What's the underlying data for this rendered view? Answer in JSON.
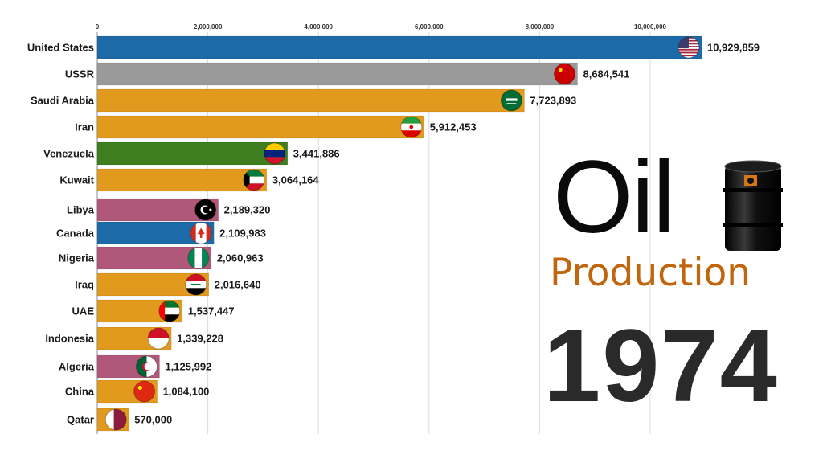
{
  "overlay": {
    "title": "Oil",
    "subtitle": "Production",
    "year": "1974"
  },
  "colors": {
    "blue": "#1d6aa8",
    "gray": "#9a9a9a",
    "orange": "#e29a1e",
    "green": "#3f7e1e",
    "mauve": "#b0587a",
    "subtitle": "#c0660e"
  },
  "chart_data": {
    "type": "bar",
    "orientation": "horizontal",
    "xlim": [
      0,
      11000000
    ],
    "ticks": [
      0,
      2000000,
      4000000,
      6000000,
      8000000,
      10000000
    ],
    "tick_labels": [
      "0",
      "2,000,000",
      "4,000,000",
      "6,000,000",
      "8,000,000",
      "10,000,000"
    ],
    "grid": true,
    "categories": [
      "United States",
      "USSR",
      "Saudi Arabia",
      "Iran",
      "Venezuela",
      "Kuwait",
      "Libya",
      "Canada",
      "Nigeria",
      "Iraq",
      "UAE",
      "Indonesia",
      "Algeria",
      "China",
      "Qatar"
    ],
    "values": [
      10929859,
      8684541,
      7723893,
      5912453,
      3441886,
      3064164,
      2189320,
      2109983,
      2060963,
      2016640,
      1537447,
      1339228,
      1125992,
      1084100,
      570000
    ],
    "value_labels": [
      "10,929,859",
      "8,684,541",
      "7,723,893",
      "5,912,453",
      "3,441,886",
      "3,064,164",
      "2,189,320",
      "2,109,983",
      "2,060,963",
      "2,016,640",
      "1,537,447",
      "1,339,228",
      "1,125,992",
      "1,084,100",
      "570,000"
    ],
    "bar_colors": [
      "blue",
      "gray",
      "orange",
      "orange",
      "green",
      "orange",
      "mauve",
      "blue",
      "mauve",
      "orange",
      "orange",
      "orange",
      "mauve",
      "orange",
      "orange"
    ],
    "flag_icons": [
      "usa-flag-icon",
      "ussr-flag-icon",
      "saudi-arabia-flag-icon",
      "iran-flag-icon",
      "venezuela-flag-icon",
      "kuwait-flag-icon",
      "libya-flag-icon",
      "canada-flag-icon",
      "nigeria-flag-icon",
      "iraq-flag-icon",
      "uae-flag-icon",
      "indonesia-flag-icon",
      "algeria-flag-icon",
      "china-flag-icon",
      "qatar-flag-icon"
    ]
  }
}
